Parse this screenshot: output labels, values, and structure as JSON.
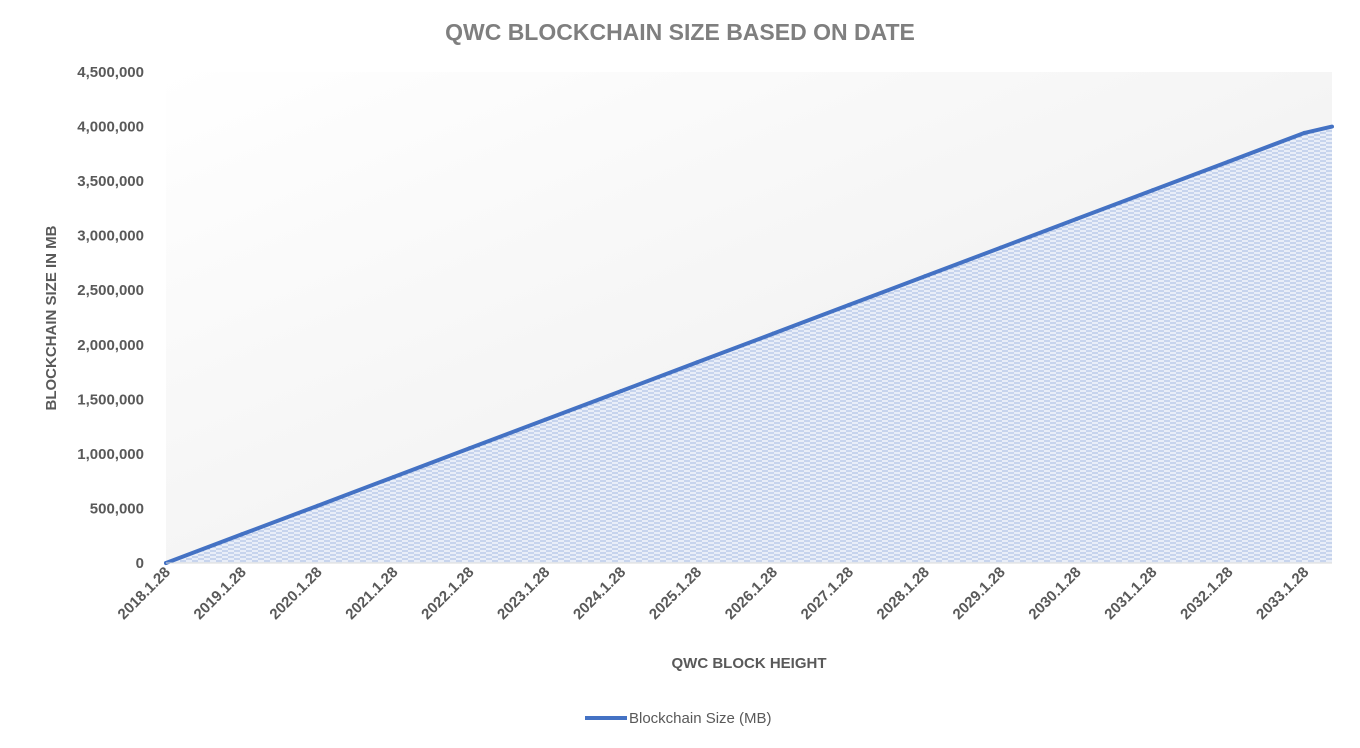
{
  "chart_data": {
    "type": "area",
    "title": "QWC BLOCKCHAIN SIZE BASED ON DATE",
    "xlabel": "QWC BLOCK HEIGHT",
    "ylabel": "BLOCKCHAIN SIZE IN MB",
    "x": [
      "2018.1.28",
      "2019.1.28",
      "2020.1.28",
      "2021.1.28",
      "2022.1.28",
      "2023.1.28",
      "2024.1.28",
      "2025.1.28",
      "2026.1.28",
      "2027.1.28",
      "2028.1.28",
      "2029.1.28",
      "2030.1.28",
      "2031.1.28",
      "2032.1.28",
      "2033.1.28"
    ],
    "series": [
      {
        "name": "Blockchain Size (MB)",
        "values": [
          0,
          262800,
          525600,
          788400,
          1051200,
          1314000,
          1576800,
          1839600,
          2102400,
          2365200,
          2628000,
          2890800,
          3153600,
          3416400,
          3679200,
          3942000
        ],
        "end_value": 4000000
      }
    ],
    "yticks": [
      "0",
      "500,000",
      "1,000,000",
      "1,500,000",
      "2,000,000",
      "2,500,000",
      "3,000,000",
      "3,500,000",
      "4,000,000",
      "4,500,000"
    ],
    "ylim": [
      0,
      4500000
    ],
    "legend_position": "bottom",
    "grid": false,
    "colors": {
      "line": "#4472c4",
      "fill_pattern": "#8faadc",
      "title": "#7f7f7f",
      "text": "#595959",
      "axis": "#d9d9d9"
    }
  }
}
